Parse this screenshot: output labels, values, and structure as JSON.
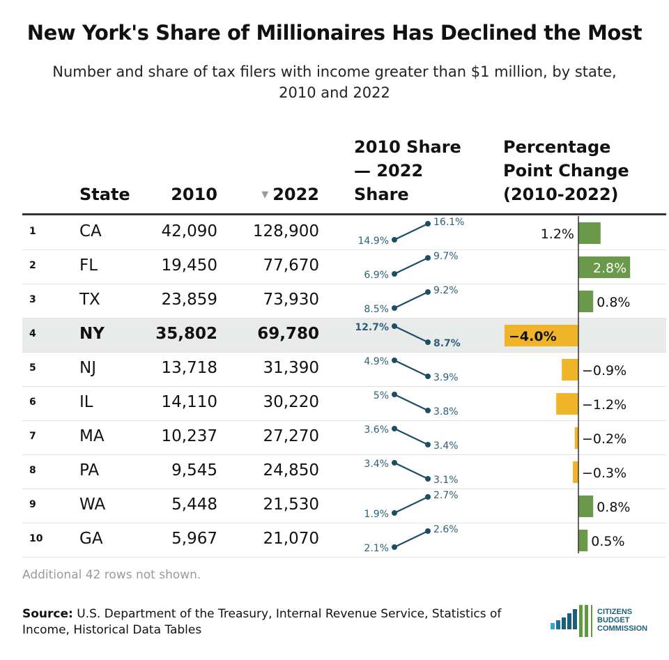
{
  "title": "New York's Share of Millionaires Has Declined the Most",
  "subtitle": "Number and share of tax filers with income greater than $1 million, by state, 2010 and 2022",
  "columns": {
    "state": "State",
    "y2010": "2010",
    "y2022": "2022",
    "sort_indicator": "▼",
    "share_line1": "2010 Share",
    "share_line2": "— 2022",
    "share_line3": "Share",
    "change_line1": "Percentage",
    "change_line2": "Point Change",
    "change_line3": "(2010-2022)"
  },
  "highlight_state": "NY",
  "colors": {
    "slope": "#1d4e63",
    "slope_label": "#2a6179",
    "positive": "#6a9a49",
    "negative": "#f0b429",
    "highlight_row": "#e9ebeb"
  },
  "chart_data": {
    "type": "table",
    "rows": [
      {
        "rank": "1",
        "state": "CA",
        "v2010": "42,090",
        "v2022": "128,900",
        "share2010": 14.9,
        "share2022": 16.1,
        "share2010_label": "14.9%",
        "share2022_label": "16.1%",
        "change": 1.2,
        "change_label": "1.2%"
      },
      {
        "rank": "2",
        "state": "FL",
        "v2010": "19,450",
        "v2022": "77,670",
        "share2010": 6.9,
        "share2022": 9.7,
        "share2010_label": "6.9%",
        "share2022_label": "9.7%",
        "change": 2.8,
        "change_label": "2.8%"
      },
      {
        "rank": "3",
        "state": "TX",
        "v2010": "23,859",
        "v2022": "73,930",
        "share2010": 8.5,
        "share2022": 9.2,
        "share2010_label": "8.5%",
        "share2022_label": "9.2%",
        "change": 0.8,
        "change_label": "0.8%"
      },
      {
        "rank": "4",
        "state": "NY",
        "v2010": "35,802",
        "v2022": "69,780",
        "share2010": 12.7,
        "share2022": 8.7,
        "share2010_label": "12.7%",
        "share2022_label": "8.7%",
        "change": -4.0,
        "change_label": "−4.0%"
      },
      {
        "rank": "5",
        "state": "NJ",
        "v2010": "13,718",
        "v2022": "31,390",
        "share2010": 4.9,
        "share2022": 3.9,
        "share2010_label": "4.9%",
        "share2022_label": "3.9%",
        "change": -0.9,
        "change_label": "−0.9%"
      },
      {
        "rank": "6",
        "state": "IL",
        "v2010": "14,110",
        "v2022": "30,220",
        "share2010": 5.0,
        "share2022": 3.8,
        "share2010_label": "5%",
        "share2022_label": "3.8%",
        "change": -1.2,
        "change_label": "−1.2%"
      },
      {
        "rank": "7",
        "state": "MA",
        "v2010": "10,237",
        "v2022": "27,270",
        "share2010": 3.6,
        "share2022": 3.4,
        "share2010_label": "3.6%",
        "share2022_label": "3.4%",
        "change": -0.2,
        "change_label": "−0.2%"
      },
      {
        "rank": "8",
        "state": "PA",
        "v2010": "9,545",
        "v2022": "24,850",
        "share2010": 3.4,
        "share2022": 3.1,
        "share2010_label": "3.4%",
        "share2022_label": "3.1%",
        "change": -0.3,
        "change_label": "−0.3%"
      },
      {
        "rank": "9",
        "state": "WA",
        "v2010": "5,448",
        "v2022": "21,530",
        "share2010": 1.9,
        "share2022": 2.7,
        "share2010_label": "1.9%",
        "share2022_label": "2.7%",
        "change": 0.8,
        "change_label": "0.8%"
      },
      {
        "rank": "10",
        "state": "GA",
        "v2010": "5,967",
        "v2022": "21,070",
        "share2010": 2.1,
        "share2022": 2.6,
        "share2010_label": "2.1%",
        "share2022_label": "2.6%",
        "change": 0.5,
        "change_label": "0.5%"
      }
    ]
  },
  "note": "Additional 42 rows not shown.",
  "source_label": "Source:",
  "source_text": " U.S. Department of the Treasury, Internal Revenue Service, Statistics of Income, Historical Data Tables",
  "logo": {
    "line1": "CITIZENS",
    "line2": "BUDGET",
    "line3": "COMMISSION"
  }
}
